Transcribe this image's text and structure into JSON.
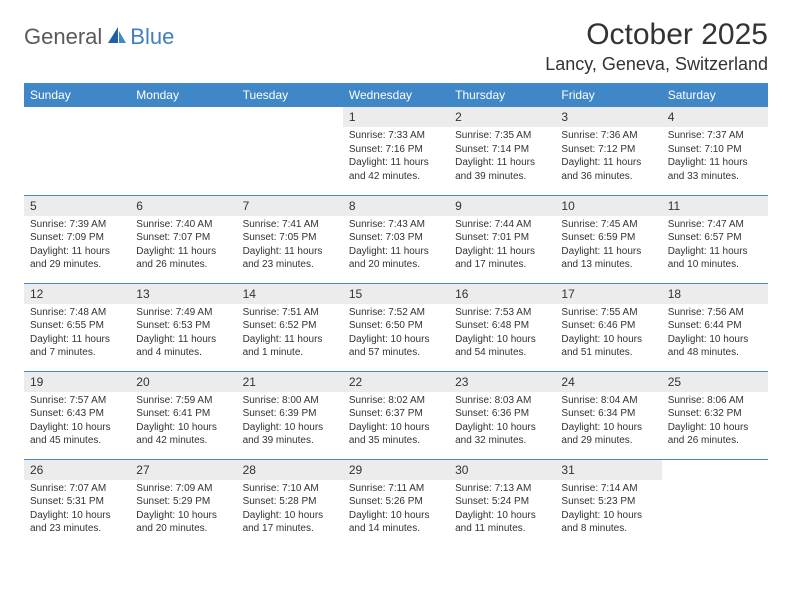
{
  "logo": {
    "text1": "General",
    "text2": "Blue"
  },
  "title": "October 2025",
  "location": "Lancy, Geneva, Switzerland",
  "theme": {
    "header_bg": "#3f87c7",
    "header_fg": "#ffffff",
    "daynum_bg": "#ececec",
    "rule_color": "#3f87c7",
    "text_color": "#333333",
    "logo_gray": "#5a5a5a",
    "logo_blue": "#3f7fbf"
  },
  "day_labels": [
    "Sunday",
    "Monday",
    "Tuesday",
    "Wednesday",
    "Thursday",
    "Friday",
    "Saturday"
  ],
  "weeks": [
    [
      {
        "n": "",
        "sr": "",
        "ss": "",
        "dl1": "",
        "dl2": ""
      },
      {
        "n": "",
        "sr": "",
        "ss": "",
        "dl1": "",
        "dl2": ""
      },
      {
        "n": "",
        "sr": "",
        "ss": "",
        "dl1": "",
        "dl2": ""
      },
      {
        "n": "1",
        "sr": "Sunrise: 7:33 AM",
        "ss": "Sunset: 7:16 PM",
        "dl1": "Daylight: 11 hours",
        "dl2": "and 42 minutes."
      },
      {
        "n": "2",
        "sr": "Sunrise: 7:35 AM",
        "ss": "Sunset: 7:14 PM",
        "dl1": "Daylight: 11 hours",
        "dl2": "and 39 minutes."
      },
      {
        "n": "3",
        "sr": "Sunrise: 7:36 AM",
        "ss": "Sunset: 7:12 PM",
        "dl1": "Daylight: 11 hours",
        "dl2": "and 36 minutes."
      },
      {
        "n": "4",
        "sr": "Sunrise: 7:37 AM",
        "ss": "Sunset: 7:10 PM",
        "dl1": "Daylight: 11 hours",
        "dl2": "and 33 minutes."
      }
    ],
    [
      {
        "n": "5",
        "sr": "Sunrise: 7:39 AM",
        "ss": "Sunset: 7:09 PM",
        "dl1": "Daylight: 11 hours",
        "dl2": "and 29 minutes."
      },
      {
        "n": "6",
        "sr": "Sunrise: 7:40 AM",
        "ss": "Sunset: 7:07 PM",
        "dl1": "Daylight: 11 hours",
        "dl2": "and 26 minutes."
      },
      {
        "n": "7",
        "sr": "Sunrise: 7:41 AM",
        "ss": "Sunset: 7:05 PM",
        "dl1": "Daylight: 11 hours",
        "dl2": "and 23 minutes."
      },
      {
        "n": "8",
        "sr": "Sunrise: 7:43 AM",
        "ss": "Sunset: 7:03 PM",
        "dl1": "Daylight: 11 hours",
        "dl2": "and 20 minutes."
      },
      {
        "n": "9",
        "sr": "Sunrise: 7:44 AM",
        "ss": "Sunset: 7:01 PM",
        "dl1": "Daylight: 11 hours",
        "dl2": "and 17 minutes."
      },
      {
        "n": "10",
        "sr": "Sunrise: 7:45 AM",
        "ss": "Sunset: 6:59 PM",
        "dl1": "Daylight: 11 hours",
        "dl2": "and 13 minutes."
      },
      {
        "n": "11",
        "sr": "Sunrise: 7:47 AM",
        "ss": "Sunset: 6:57 PM",
        "dl1": "Daylight: 11 hours",
        "dl2": "and 10 minutes."
      }
    ],
    [
      {
        "n": "12",
        "sr": "Sunrise: 7:48 AM",
        "ss": "Sunset: 6:55 PM",
        "dl1": "Daylight: 11 hours",
        "dl2": "and 7 minutes."
      },
      {
        "n": "13",
        "sr": "Sunrise: 7:49 AM",
        "ss": "Sunset: 6:53 PM",
        "dl1": "Daylight: 11 hours",
        "dl2": "and 4 minutes."
      },
      {
        "n": "14",
        "sr": "Sunrise: 7:51 AM",
        "ss": "Sunset: 6:52 PM",
        "dl1": "Daylight: 11 hours",
        "dl2": "and 1 minute."
      },
      {
        "n": "15",
        "sr": "Sunrise: 7:52 AM",
        "ss": "Sunset: 6:50 PM",
        "dl1": "Daylight: 10 hours",
        "dl2": "and 57 minutes."
      },
      {
        "n": "16",
        "sr": "Sunrise: 7:53 AM",
        "ss": "Sunset: 6:48 PM",
        "dl1": "Daylight: 10 hours",
        "dl2": "and 54 minutes."
      },
      {
        "n": "17",
        "sr": "Sunrise: 7:55 AM",
        "ss": "Sunset: 6:46 PM",
        "dl1": "Daylight: 10 hours",
        "dl2": "and 51 minutes."
      },
      {
        "n": "18",
        "sr": "Sunrise: 7:56 AM",
        "ss": "Sunset: 6:44 PM",
        "dl1": "Daylight: 10 hours",
        "dl2": "and 48 minutes."
      }
    ],
    [
      {
        "n": "19",
        "sr": "Sunrise: 7:57 AM",
        "ss": "Sunset: 6:43 PM",
        "dl1": "Daylight: 10 hours",
        "dl2": "and 45 minutes."
      },
      {
        "n": "20",
        "sr": "Sunrise: 7:59 AM",
        "ss": "Sunset: 6:41 PM",
        "dl1": "Daylight: 10 hours",
        "dl2": "and 42 minutes."
      },
      {
        "n": "21",
        "sr": "Sunrise: 8:00 AM",
        "ss": "Sunset: 6:39 PM",
        "dl1": "Daylight: 10 hours",
        "dl2": "and 39 minutes."
      },
      {
        "n": "22",
        "sr": "Sunrise: 8:02 AM",
        "ss": "Sunset: 6:37 PM",
        "dl1": "Daylight: 10 hours",
        "dl2": "and 35 minutes."
      },
      {
        "n": "23",
        "sr": "Sunrise: 8:03 AM",
        "ss": "Sunset: 6:36 PM",
        "dl1": "Daylight: 10 hours",
        "dl2": "and 32 minutes."
      },
      {
        "n": "24",
        "sr": "Sunrise: 8:04 AM",
        "ss": "Sunset: 6:34 PM",
        "dl1": "Daylight: 10 hours",
        "dl2": "and 29 minutes."
      },
      {
        "n": "25",
        "sr": "Sunrise: 8:06 AM",
        "ss": "Sunset: 6:32 PM",
        "dl1": "Daylight: 10 hours",
        "dl2": "and 26 minutes."
      }
    ],
    [
      {
        "n": "26",
        "sr": "Sunrise: 7:07 AM",
        "ss": "Sunset: 5:31 PM",
        "dl1": "Daylight: 10 hours",
        "dl2": "and 23 minutes."
      },
      {
        "n": "27",
        "sr": "Sunrise: 7:09 AM",
        "ss": "Sunset: 5:29 PM",
        "dl1": "Daylight: 10 hours",
        "dl2": "and 20 minutes."
      },
      {
        "n": "28",
        "sr": "Sunrise: 7:10 AM",
        "ss": "Sunset: 5:28 PM",
        "dl1": "Daylight: 10 hours",
        "dl2": "and 17 minutes."
      },
      {
        "n": "29",
        "sr": "Sunrise: 7:11 AM",
        "ss": "Sunset: 5:26 PM",
        "dl1": "Daylight: 10 hours",
        "dl2": "and 14 minutes."
      },
      {
        "n": "30",
        "sr": "Sunrise: 7:13 AM",
        "ss": "Sunset: 5:24 PM",
        "dl1": "Daylight: 10 hours",
        "dl2": "and 11 minutes."
      },
      {
        "n": "31",
        "sr": "Sunrise: 7:14 AM",
        "ss": "Sunset: 5:23 PM",
        "dl1": "Daylight: 10 hours",
        "dl2": "and 8 minutes."
      },
      {
        "n": "",
        "sr": "",
        "ss": "",
        "dl1": "",
        "dl2": ""
      }
    ]
  ]
}
